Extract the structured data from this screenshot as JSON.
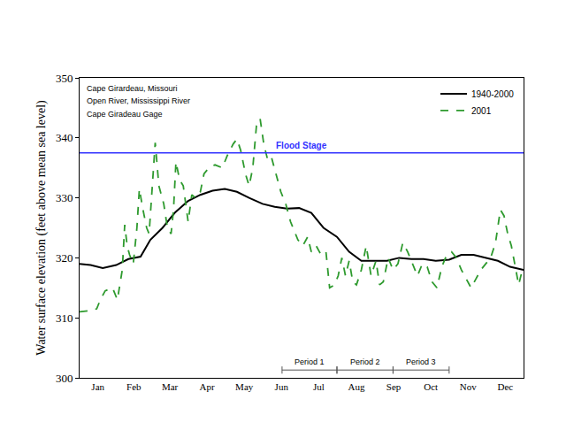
{
  "chart_data": {
    "type": "line",
    "annotations": [
      "Cape Girardeau, Missouri",
      "Open River, Mississippi River",
      "Cape Giradeau Gage"
    ],
    "y_label": "Water surface elevation (feet above mean sea level)",
    "xlim": [
      1,
      365
    ],
    "xticks": [
      {
        "value": 16,
        "label": "Jan"
      },
      {
        "value": 45.5,
        "label": "Feb"
      },
      {
        "value": 75,
        "label": "Mar"
      },
      {
        "value": 105.5,
        "label": "Apr"
      },
      {
        "value": 136,
        "label": "May"
      },
      {
        "value": 166.5,
        "label": "Jun"
      },
      {
        "value": 197,
        "label": "Jul"
      },
      {
        "value": 228,
        "label": "Aug"
      },
      {
        "value": 258.5,
        "label": "Sep"
      },
      {
        "value": 289,
        "label": "Oct"
      },
      {
        "value": 319.5,
        "label": "Nov"
      },
      {
        "value": 350,
        "label": "Dec"
      }
    ],
    "ylim": [
      300,
      350
    ],
    "yticks": [
      300,
      310,
      320,
      330,
      340,
      350
    ],
    "grid": false,
    "legend": "upper right",
    "flood_stage": {
      "value": 337.5,
      "label": "Flood Stage",
      "color": "#3333ff"
    },
    "periods": [
      {
        "label": "Period 1",
        "start": 167,
        "end": 212
      },
      {
        "label": "Period 2",
        "start": 212,
        "end": 258
      },
      {
        "label": "Period 3",
        "start": 258,
        "end": 304
      }
    ],
    "series": [
      {
        "name": "1940-2000",
        "color": "#000000",
        "line_style": "solid",
        "x": [
          1,
          10,
          20,
          31,
          41,
          51,
          59,
          69,
          79,
          90,
          100,
          110,
          120,
          130,
          140,
          151,
          161,
          171,
          181,
          191,
          201,
          212,
          222,
          232,
          243,
          253,
          263,
          273,
          283,
          293,
          304,
          314,
          324,
          334,
          344,
          354,
          365
        ],
        "values": [
          319,
          318.8,
          318.3,
          318.8,
          319.8,
          320.2,
          323,
          325,
          327.5,
          329.5,
          330.5,
          331.2,
          331.5,
          331,
          330,
          329,
          328.5,
          328.2,
          328.3,
          327.5,
          325,
          323.5,
          321,
          319.5,
          319.5,
          319.5,
          320,
          319.8,
          319.8,
          319.5,
          319.7,
          320.5,
          320.5,
          320,
          319.5,
          318.5,
          318
        ]
      },
      {
        "name": "2001",
        "color": "#2e9a2e",
        "line_style": "dash",
        "x": [
          1,
          10,
          15,
          18,
          22,
          28,
          32,
          36,
          38,
          40,
          42,
          45,
          48,
          50,
          53,
          56,
          58,
          60,
          63,
          66,
          70,
          73,
          76,
          78,
          80,
          83,
          86,
          90,
          93,
          96,
          100,
          103,
          107,
          112,
          118,
          122,
          127,
          130,
          133,
          137,
          140,
          143,
          146,
          149,
          152,
          155,
          158,
          162,
          166,
          170,
          174,
          177,
          180,
          184,
          188,
          191,
          195,
          199,
          203,
          206,
          210,
          213,
          216,
          219,
          222,
          225,
          228,
          232,
          236,
          240,
          244,
          247,
          250,
          254,
          258,
          262,
          266,
          270,
          274,
          278,
          282,
          286,
          290,
          294,
          298,
          302,
          306,
          310,
          314,
          318,
          322,
          326,
          330,
          334,
          338,
          342,
          346,
          349,
          352,
          355,
          358,
          361,
          364,
          365
        ],
        "values": [
          311,
          311.2,
          311.5,
          313,
          314.5,
          315,
          313,
          318,
          325.5,
          322,
          320.5,
          319,
          325,
          331.5,
          328,
          325,
          324,
          330,
          339.2,
          332,
          329,
          325,
          324,
          328,
          336,
          333,
          332,
          326,
          330.5,
          330,
          331,
          334,
          335,
          335.5,
          335,
          337,
          339,
          339.8,
          338,
          334,
          332,
          335,
          342,
          343.2,
          339,
          336.5,
          337,
          334,
          331,
          329,
          326,
          324.5,
          323,
          322,
          323.5,
          321,
          322,
          320.5,
          321,
          315,
          315.5,
          317,
          320,
          317,
          319.5,
          316,
          315.5,
          318,
          322,
          317,
          319.5,
          315.5,
          316,
          320,
          318,
          319,
          322.5,
          321,
          319,
          317,
          319,
          318.5,
          316,
          315,
          318.5,
          320.5,
          321,
          320,
          318,
          316.5,
          315,
          316.5,
          318,
          319,
          320,
          322.5,
          328,
          327,
          324,
          322,
          319,
          315.5,
          318,
          318
        ]
      }
    ]
  }
}
